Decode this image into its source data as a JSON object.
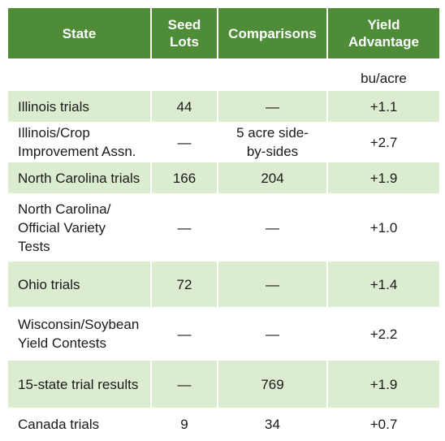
{
  "headers": {
    "state": "State",
    "seed_lots": [
      "Seed",
      "Lots"
    ],
    "comparisons": "Comparisons",
    "yield_advantage": [
      "Yield",
      "Advantage"
    ]
  },
  "unit": "bu/acre",
  "rows": [
    {
      "state": [
        "Illinois trials"
      ],
      "seed_lots": "44",
      "comparisons": [
        "—"
      ],
      "yield": "+1.1",
      "shaded": true
    },
    {
      "state": [
        "Illinois/Crop",
        "Improvement Assn."
      ],
      "seed_lots": "—",
      "comparisons": [
        "5 acre side-",
        "by-sides"
      ],
      "yield": "+2.7",
      "shaded": false
    },
    {
      "state": [
        "North Carolina trials"
      ],
      "seed_lots": "166",
      "comparisons": [
        "204"
      ],
      "yield": "+1.9",
      "shaded": true
    },
    {
      "state": [
        "North Carolina/",
        "Official Variety",
        "Tests"
      ],
      "seed_lots": "—",
      "comparisons": [
        "—"
      ],
      "yield": "+1.0",
      "shaded": false
    },
    {
      "state": [
        "Ohio trials"
      ],
      "seed_lots": "72",
      "comparisons": [
        "—"
      ],
      "yield": "+1.4",
      "shaded": true
    },
    {
      "state": [
        "Wisconsin/Soybean",
        "Yield Contests"
      ],
      "seed_lots": "—",
      "comparisons": [
        "—"
      ],
      "yield": "+2.2",
      "shaded": false
    },
    {
      "state": [
        "15-state trial results"
      ],
      "seed_lots": "—",
      "comparisons": [
        "769"
      ],
      "yield": "+1.9",
      "shaded": true
    },
    {
      "state": [
        "Canada trials"
      ],
      "seed_lots": "9",
      "comparisons": [
        "34"
      ],
      "yield": "+0.7",
      "shaded": false
    }
  ],
  "colors": {
    "header_bg": "#4e8c38",
    "header_text": "#ffffff",
    "stripe": "#dcecd1"
  }
}
